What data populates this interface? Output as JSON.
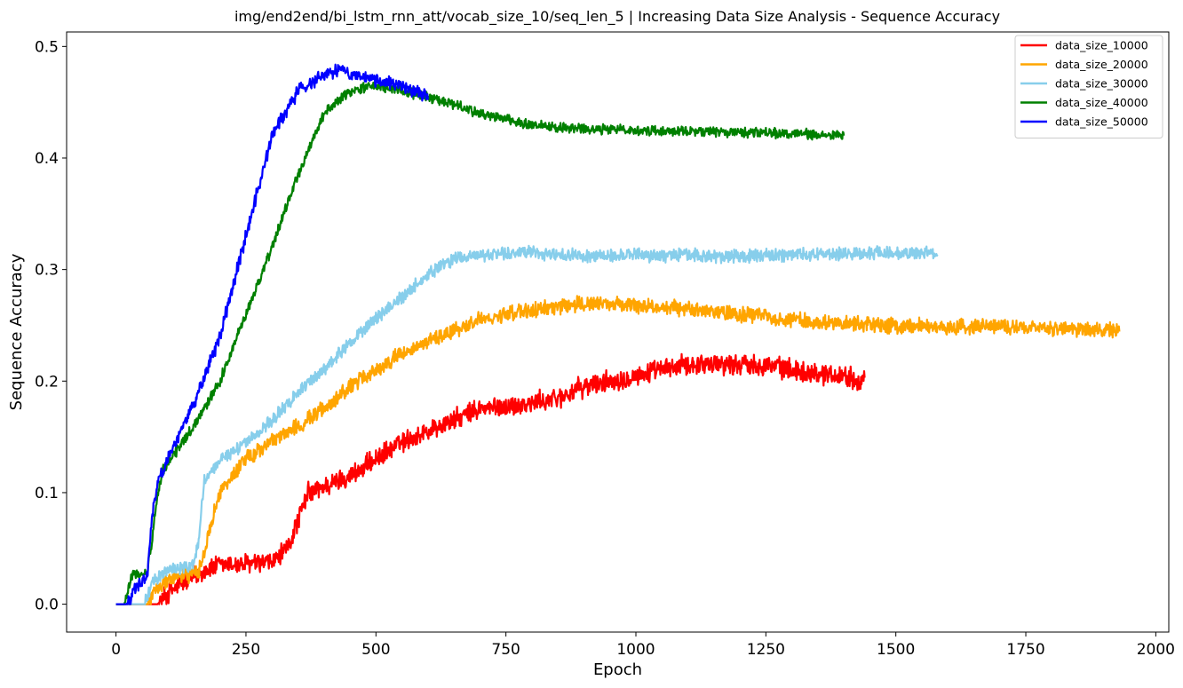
{
  "chart_data": {
    "type": "line",
    "title": "img/end2end/bi_lstm_rnn_att/vocab_size_10/seq_len_5 | Increasing Data Size Analysis - Sequence Accuracy",
    "xlabel": "Epoch",
    "ylabel": "Sequence Accuracy",
    "xlim": [
      -95,
      2025
    ],
    "ylim": [
      -0.025,
      0.513
    ],
    "xticks": [
      0,
      250,
      500,
      750,
      1000,
      1250,
      1500,
      1750,
      2000
    ],
    "xtick_labels": [
      "0",
      "250",
      "500",
      "750",
      "1000",
      "1250",
      "1500",
      "1750",
      "2000"
    ],
    "yticks": [
      0.0,
      0.1,
      0.2,
      0.3,
      0.4,
      0.5
    ],
    "ytick_labels": [
      "0.0",
      "0.1",
      "0.2",
      "0.3",
      "0.4",
      "0.5"
    ],
    "grid": false,
    "legend_position": "top-right",
    "series": [
      {
        "name": "data_size_10000",
        "color": "#ff0000",
        "x": [
          0,
          60,
          80,
          100,
          130,
          170,
          200,
          250,
          300,
          330,
          350,
          370,
          400,
          450,
          500,
          550,
          600,
          650,
          700,
          750,
          800,
          850,
          900,
          950,
          1000,
          1050,
          1100,
          1150,
          1200,
          1250,
          1300,
          1350,
          1400,
          1440
        ],
        "y": [
          0.0,
          0.0,
          0.0,
          0.01,
          0.02,
          0.03,
          0.035,
          0.036,
          0.037,
          0.05,
          0.075,
          0.1,
          0.105,
          0.115,
          0.13,
          0.145,
          0.155,
          0.165,
          0.175,
          0.177,
          0.18,
          0.185,
          0.195,
          0.2,
          0.205,
          0.21,
          0.215,
          0.216,
          0.215,
          0.215,
          0.21,
          0.207,
          0.205,
          0.2
        ],
        "noise": 0.008
      },
      {
        "name": "data_size_20000",
        "color": "#ffa500",
        "x": [
          0,
          40,
          60,
          80,
          100,
          140,
          160,
          170,
          180,
          200,
          250,
          300,
          350,
          400,
          450,
          500,
          550,
          600,
          650,
          700,
          750,
          800,
          850,
          900,
          950,
          1000,
          1050,
          1100,
          1150,
          1200,
          1250,
          1300,
          1350,
          1400,
          1450,
          1500,
          1550,
          1600,
          1650,
          1700,
          1750,
          1800,
          1850,
          1900,
          1930
        ],
        "y": [
          0.0,
          0.0,
          0.0,
          0.015,
          0.022,
          0.027,
          0.03,
          0.045,
          0.07,
          0.1,
          0.13,
          0.145,
          0.16,
          0.175,
          0.195,
          0.21,
          0.225,
          0.235,
          0.245,
          0.255,
          0.26,
          0.263,
          0.267,
          0.27,
          0.27,
          0.268,
          0.267,
          0.265,
          0.262,
          0.26,
          0.258,
          0.255,
          0.253,
          0.252,
          0.25,
          0.25,
          0.249,
          0.248,
          0.248,
          0.248,
          0.248,
          0.247,
          0.246,
          0.246,
          0.245
        ],
        "noise": 0.006
      },
      {
        "name": "data_size_30000",
        "color": "#87ceeb",
        "x": [
          0,
          45,
          55,
          70,
          100,
          150,
          160,
          165,
          170,
          200,
          250,
          300,
          350,
          400,
          450,
          500,
          550,
          600,
          650,
          700,
          750,
          800,
          850,
          900,
          950,
          1000,
          1050,
          1100,
          1150,
          1200,
          1250,
          1300,
          1350,
          1400,
          1450,
          1500,
          1550,
          1580
        ],
        "y": [
          0.0,
          0.0,
          0.0,
          0.02,
          0.03,
          0.035,
          0.06,
          0.09,
          0.11,
          0.13,
          0.145,
          0.165,
          0.19,
          0.21,
          0.235,
          0.255,
          0.275,
          0.295,
          0.31,
          0.313,
          0.315,
          0.315,
          0.313,
          0.312,
          0.313,
          0.313,
          0.312,
          0.313,
          0.312,
          0.312,
          0.313,
          0.313,
          0.313,
          0.314,
          0.315,
          0.315,
          0.315,
          0.314
        ],
        "noise": 0.005
      },
      {
        "name": "data_size_40000",
        "color": "#008000",
        "x": [
          0,
          15,
          30,
          60,
          70,
          80,
          90,
          120,
          150,
          200,
          250,
          300,
          350,
          400,
          450,
          500,
          550,
          600,
          650,
          700,
          750,
          800,
          850,
          900,
          950,
          1000,
          1050,
          1100,
          1150,
          1200,
          1250,
          1300,
          1350,
          1400
        ],
        "y": [
          0.0,
          0.0,
          0.025,
          0.03,
          0.06,
          0.1,
          0.12,
          0.14,
          0.16,
          0.2,
          0.26,
          0.32,
          0.385,
          0.44,
          0.46,
          0.465,
          0.46,
          0.455,
          0.448,
          0.44,
          0.435,
          0.43,
          0.428,
          0.427,
          0.425,
          0.425,
          0.424,
          0.424,
          0.423,
          0.423,
          0.422,
          0.422,
          0.421,
          0.42
        ],
        "noise": 0.004
      },
      {
        "name": "data_size_50000",
        "color": "#0000ff",
        "x": [
          0,
          20,
          40,
          60,
          70,
          80,
          100,
          130,
          150,
          200,
          250,
          300,
          350,
          400,
          430,
          450,
          500,
          550,
          600
        ],
        "y": [
          0.0,
          0.0,
          0.015,
          0.025,
          0.08,
          0.11,
          0.13,
          0.16,
          0.18,
          0.24,
          0.33,
          0.42,
          0.46,
          0.475,
          0.48,
          0.475,
          0.47,
          0.465,
          0.455
        ],
        "noise": 0.005
      }
    ]
  }
}
